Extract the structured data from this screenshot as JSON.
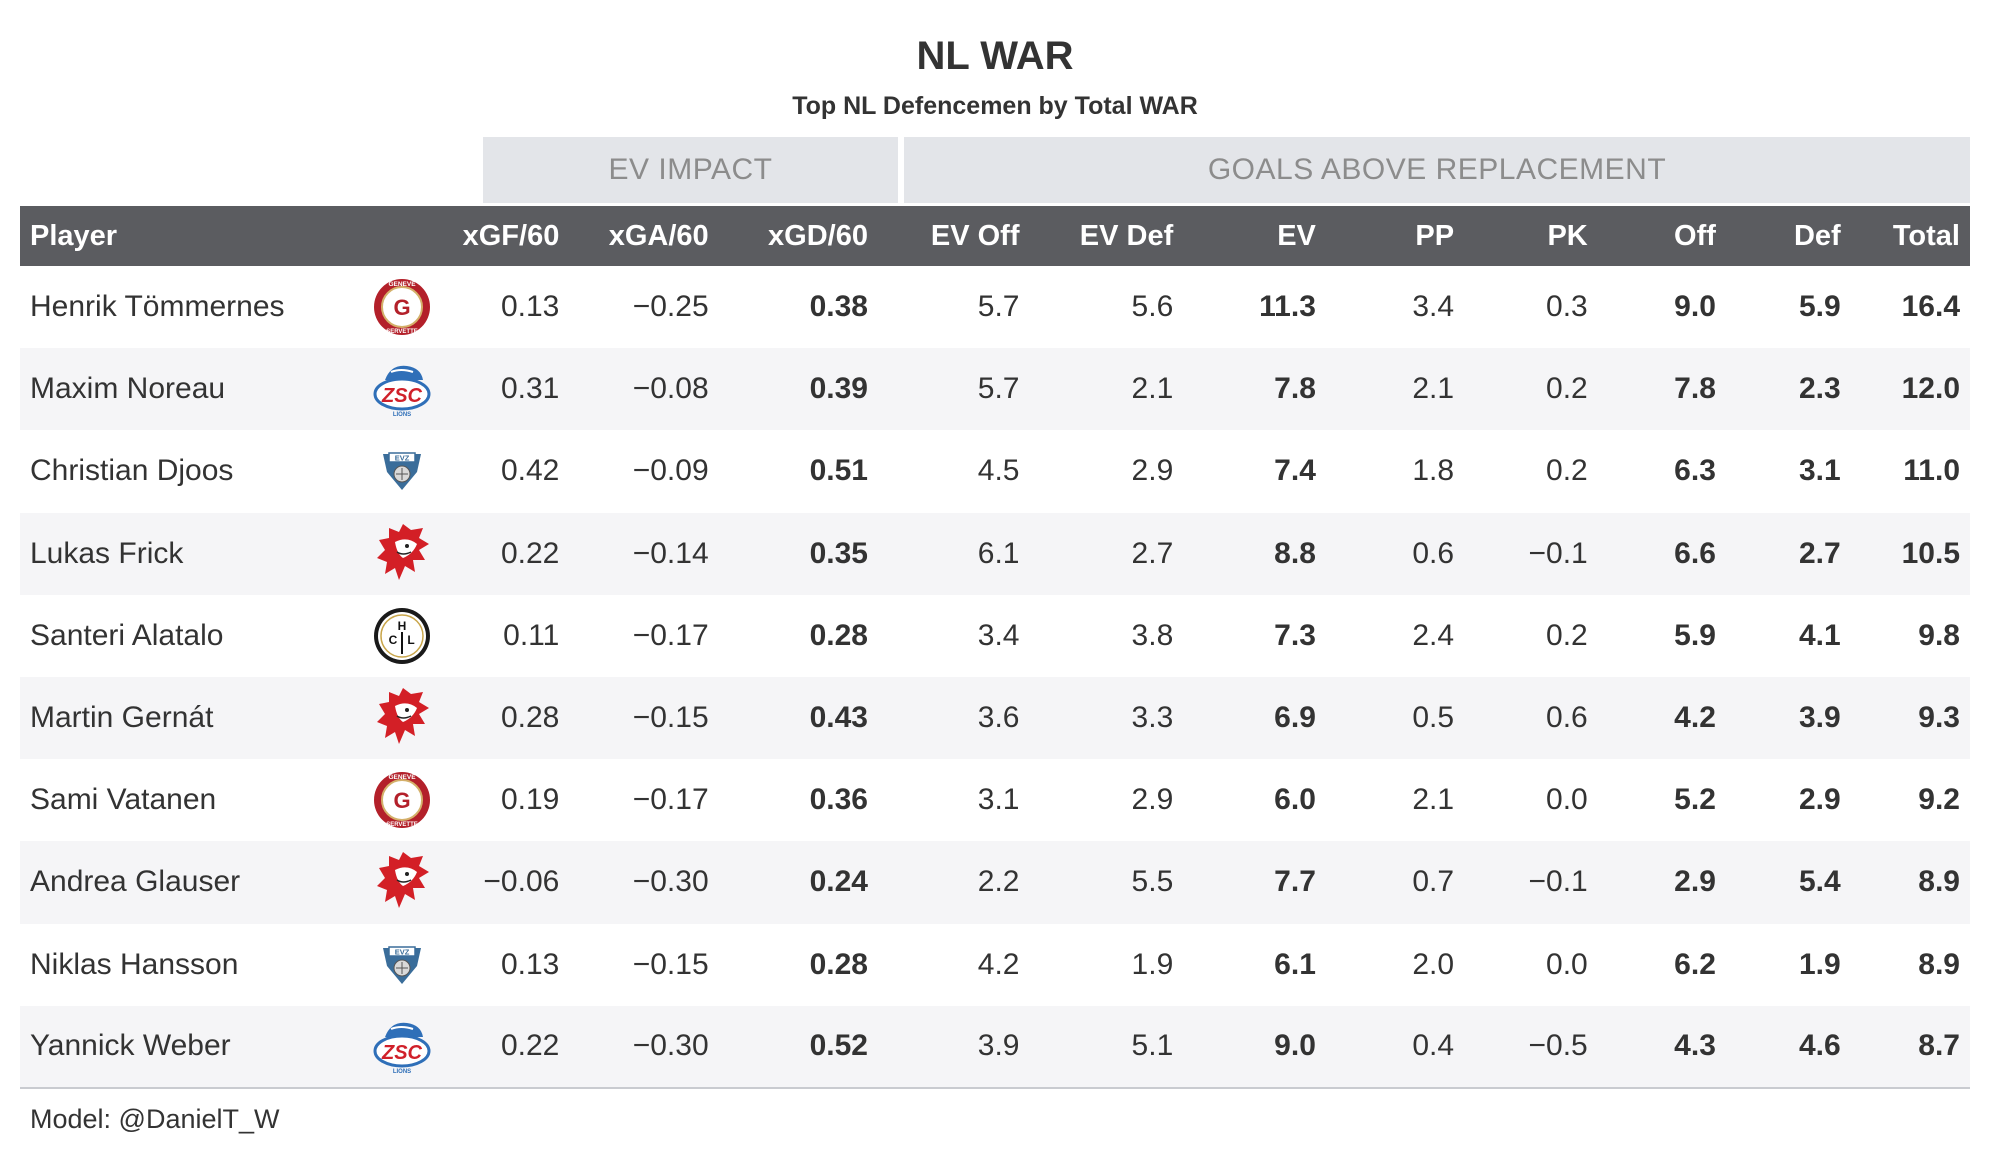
{
  "title": "NL WAR",
  "subtitle": "Top NL Defencemen by Total WAR",
  "groups": {
    "ev_impact": "EV IMPACT",
    "gar": "GOALS ABOVE REPLACEMENT"
  },
  "columns": {
    "player": "Player",
    "xgf": "xGF/60",
    "xga": "xGA/60",
    "xgd": "xGD/60",
    "ev_off": "EV Off",
    "ev_def": "EV Def",
    "ev": "EV",
    "pp": "PP",
    "pk": "PK",
    "off": "Off",
    "def": "Def",
    "total": "Total"
  },
  "team_logos": {
    "geneve": {
      "text_top": "GENEVE",
      "letter": "G",
      "text_bottom": "SERVETTE",
      "color": "#b3202a",
      "accent": "#d4b06a"
    },
    "zsc": {
      "letter": "ZSC",
      "text_bottom": "LIONS",
      "color": "#2f6fb8",
      "accent": "#d0202a"
    },
    "evz": {
      "letter": "EVZ",
      "color": "#3a6d9a"
    },
    "lausanne": {
      "name": "lion-head",
      "color": "#d31f26"
    },
    "lugano": {
      "letter": "HCL",
      "color": "#1a1a1a",
      "accent": "#c9a64b"
    }
  },
  "chart_data": {
    "type": "table",
    "title": "NL WAR",
    "subtitle": "Top NL Defencemen by Total WAR",
    "rows": [
      {
        "player": "Henrik Tömmernes",
        "team": "geneve",
        "xgf": "0.13",
        "xga": "−0.25",
        "xgd": "0.38",
        "ev_off": "5.7",
        "ev_def": "5.6",
        "ev": "11.3",
        "pp": "3.4",
        "pk": "0.3",
        "off": "9.0",
        "def": "5.9",
        "total": "16.4"
      },
      {
        "player": "Maxim Noreau",
        "team": "zsc",
        "xgf": "0.31",
        "xga": "−0.08",
        "xgd": "0.39",
        "ev_off": "5.7",
        "ev_def": "2.1",
        "ev": "7.8",
        "pp": "2.1",
        "pk": "0.2",
        "off": "7.8",
        "def": "2.3",
        "total": "12.0"
      },
      {
        "player": "Christian Djoos",
        "team": "evz",
        "xgf": "0.42",
        "xga": "−0.09",
        "xgd": "0.51",
        "ev_off": "4.5",
        "ev_def": "2.9",
        "ev": "7.4",
        "pp": "1.8",
        "pk": "0.2",
        "off": "6.3",
        "def": "3.1",
        "total": "11.0"
      },
      {
        "player": "Lukas Frick",
        "team": "lausanne",
        "xgf": "0.22",
        "xga": "−0.14",
        "xgd": "0.35",
        "ev_off": "6.1",
        "ev_def": "2.7",
        "ev": "8.8",
        "pp": "0.6",
        "pk": "−0.1",
        "off": "6.6",
        "def": "2.7",
        "total": "10.5"
      },
      {
        "player": "Santeri Alatalo",
        "team": "lugano",
        "xgf": "0.11",
        "xga": "−0.17",
        "xgd": "0.28",
        "ev_off": "3.4",
        "ev_def": "3.8",
        "ev": "7.3",
        "pp": "2.4",
        "pk": "0.2",
        "off": "5.9",
        "def": "4.1",
        "total": "9.8"
      },
      {
        "player": "Martin Gernát",
        "team": "lausanne",
        "xgf": "0.28",
        "xga": "−0.15",
        "xgd": "0.43",
        "ev_off": "3.6",
        "ev_def": "3.3",
        "ev": "6.9",
        "pp": "0.5",
        "pk": "0.6",
        "off": "4.2",
        "def": "3.9",
        "total": "9.3"
      },
      {
        "player": "Sami Vatanen",
        "team": "geneve",
        "xgf": "0.19",
        "xga": "−0.17",
        "xgd": "0.36",
        "ev_off": "3.1",
        "ev_def": "2.9",
        "ev": "6.0",
        "pp": "2.1",
        "pk": "0.0",
        "off": "5.2",
        "def": "2.9",
        "total": "9.2"
      },
      {
        "player": "Andrea Glauser",
        "team": "lausanne",
        "xgf": "−0.06",
        "xga": "−0.30",
        "xgd": "0.24",
        "ev_off": "2.2",
        "ev_def": "5.5",
        "ev": "7.7",
        "pp": "0.7",
        "pk": "−0.1",
        "off": "2.9",
        "def": "5.4",
        "total": "8.9"
      },
      {
        "player": "Niklas Hansson",
        "team": "evz",
        "xgf": "0.13",
        "xga": "−0.15",
        "xgd": "0.28",
        "ev_off": "4.2",
        "ev_def": "1.9",
        "ev": "6.1",
        "pp": "2.0",
        "pk": "0.0",
        "off": "6.2",
        "def": "1.9",
        "total": "8.9"
      },
      {
        "player": "Yannick Weber",
        "team": "zsc",
        "xgf": "0.22",
        "xga": "−0.30",
        "xgd": "0.52",
        "ev_off": "3.9",
        "ev_def": "5.1",
        "ev": "9.0",
        "pp": "0.4",
        "pk": "−0.5",
        "off": "4.3",
        "def": "4.6",
        "total": "8.7"
      }
    ]
  },
  "footer": "Model: @DanielT_W"
}
